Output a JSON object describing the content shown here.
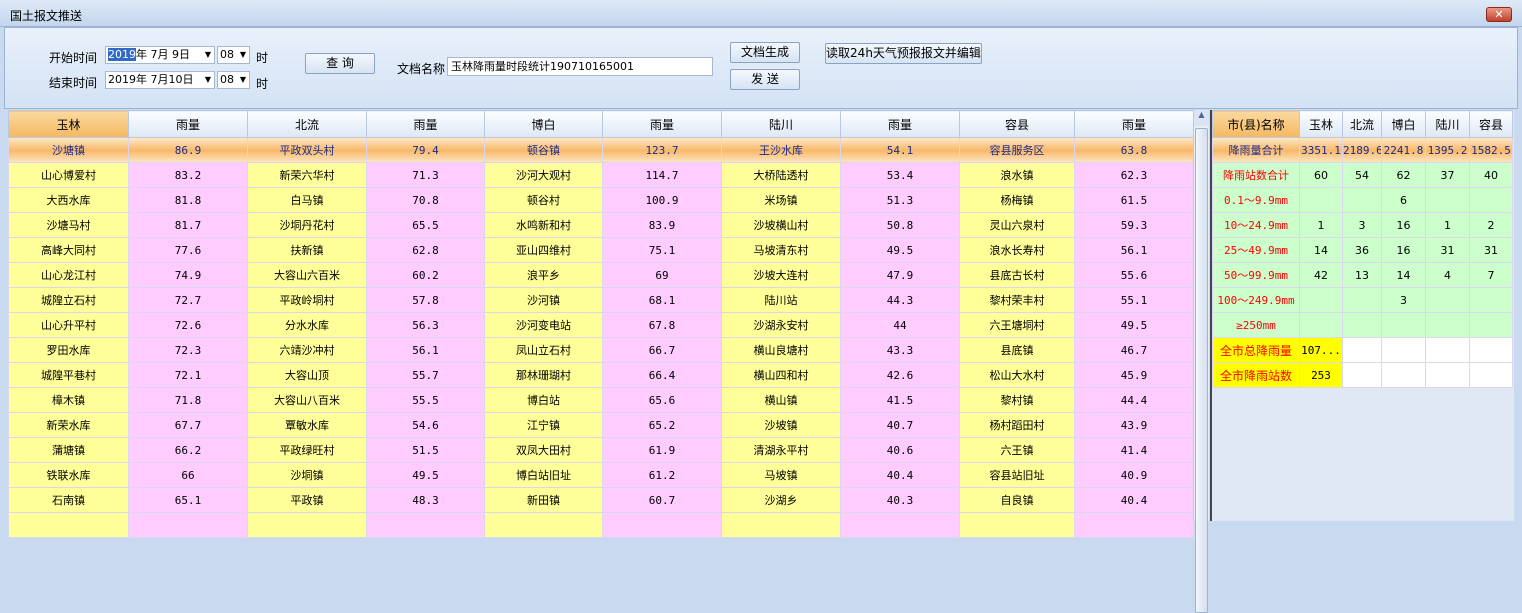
{
  "window": {
    "title": "国土报文推送",
    "close": "✕"
  },
  "toolbar": {
    "start_label": "开始时间",
    "start_date_sel": "2019",
    "start_date_rest": "年 7月 9日",
    "start_hour": "08",
    "hour_unit": "时",
    "end_label": "结束时间",
    "end_date": "2019年 7月10日",
    "end_hour": "08",
    "query": "查 询",
    "doc_name_label": "文档名称",
    "doc_name_value": "玉林降雨量时段统计190710165001",
    "generate": "文档生成",
    "send": "发 送",
    "read_forecast": "读取24h天气预报报文并编辑"
  },
  "left_table": {
    "headers": [
      "玉林",
      "雨量",
      "北流",
      "雨量",
      "博白",
      "雨量",
      "陆川",
      "雨量",
      "容县",
      "雨量"
    ],
    "rows": [
      [
        "沙塘镇",
        "86.9",
        "平政双头村",
        "79.4",
        "顿谷镇",
        "123.7",
        "王沙水库",
        "54.1",
        "容县服务区",
        "63.8"
      ],
      [
        "山心博爱村",
        "83.2",
        "新荣六华村",
        "71.3",
        "沙河大观村",
        "114.7",
        "大桥陆透村",
        "53.4",
        "浪水镇",
        "62.3"
      ],
      [
        "大西水库",
        "81.8",
        "白马镇",
        "70.8",
        "顿谷村",
        "100.9",
        "米场镇",
        "51.3",
        "杨梅镇",
        "61.5"
      ],
      [
        "沙塘马村",
        "81.7",
        "沙垌丹花村",
        "65.5",
        "水鸣新和村",
        "83.9",
        "沙坡横山村",
        "50.8",
        "灵山六泉村",
        "59.3"
      ],
      [
        "高峰大同村",
        "77.6",
        "扶新镇",
        "62.8",
        "亚山四维村",
        "75.1",
        "马坡清东村",
        "49.5",
        "浪水长寿村",
        "56.1"
      ],
      [
        "山心龙江村",
        "74.9",
        "大容山六百米",
        "60.2",
        "浪平乡",
        "69",
        "沙坡大连村",
        "47.9",
        "县底古长村",
        "55.6"
      ],
      [
        "城隍立石村",
        "72.7",
        "平政岭垌村",
        "57.8",
        "沙河镇",
        "68.1",
        "陆川站",
        "44.3",
        "黎村荣丰村",
        "55.1"
      ],
      [
        "山心升平村",
        "72.6",
        "分水水库",
        "56.3",
        "沙河变电站",
        "67.8",
        "沙湖永安村",
        "44",
        "六王塘垌村",
        "49.5"
      ],
      [
        "罗田水库",
        "72.3",
        "六靖沙冲村",
        "56.1",
        "凤山立石村",
        "66.7",
        "横山良塘村",
        "43.3",
        "县底镇",
        "46.7"
      ],
      [
        "城隍平巷村",
        "72.1",
        "大容山顶",
        "55.7",
        "那林珊瑚村",
        "66.4",
        "横山四和村",
        "42.6",
        "松山大水村",
        "45.9"
      ],
      [
        "樟木镇",
        "71.8",
        "大容山八百米",
        "55.5",
        "博白站",
        "65.6",
        "横山镇",
        "41.5",
        "黎村镇",
        "44.4"
      ],
      [
        "新荣水库",
        "67.7",
        "覃敏水库",
        "54.6",
        "江宁镇",
        "65.2",
        "沙坡镇",
        "40.7",
        "杨村蹈田村",
        "43.9"
      ],
      [
        "蒲塘镇",
        "66.2",
        "平政绿旺村",
        "51.5",
        "双凤大田村",
        "61.9",
        "清湖永平村",
        "40.6",
        "六王镇",
        "41.4"
      ],
      [
        "铁联水库",
        "66",
        "沙垌镇",
        "49.5",
        "博白站旧址",
        "61.2",
        "马坡镇",
        "40.4",
        "容县站旧址",
        "40.9"
      ],
      [
        "石南镇",
        "65.1",
        "平政镇",
        "48.3",
        "新田镇",
        "60.7",
        "沙湖乡",
        "40.3",
        "自良镇",
        "40.4"
      ],
      [
        "",
        "",
        "",
        "",
        "",
        "",
        "",
        "",
        "",
        ""
      ]
    ]
  },
  "right_table": {
    "headers": [
      "市(县)名称",
      "玉林",
      "北流",
      "博白",
      "陆川",
      "容县"
    ],
    "total_row": [
      "降雨量合计",
      "3351.1",
      "2189.6",
      "2241.8",
      "1395.2",
      "1582.5"
    ],
    "green_rows": [
      [
        "降雨站数合计",
        "60",
        "54",
        "62",
        "37",
        "40"
      ],
      [
        "0.1～9.9mm",
        "",
        "",
        "6",
        "",
        ""
      ],
      [
        "10～24.9mm",
        "1",
        "3",
        "16",
        "1",
        "2"
      ],
      [
        "25～49.9mm",
        "14",
        "36",
        "16",
        "31",
        "31"
      ],
      [
        "50～99.9mm",
        "42",
        "13",
        "14",
        "4",
        "7"
      ],
      [
        "100～249.9mm",
        "",
        "",
        "3",
        "",
        ""
      ],
      [
        "≥250mm",
        "",
        "",
        "",
        "",
        ""
      ]
    ],
    "city_rows": [
      [
        "全市总降雨量",
        "107..."
      ],
      [
        "全市降雨站数",
        "253"
      ]
    ]
  },
  "colors": {
    "name_cell": "#ffff99",
    "value_cell": "#ffccff",
    "stats_cell": "#ccffcc",
    "highlight": "#f8b868",
    "city_cell": "#ffff00"
  }
}
